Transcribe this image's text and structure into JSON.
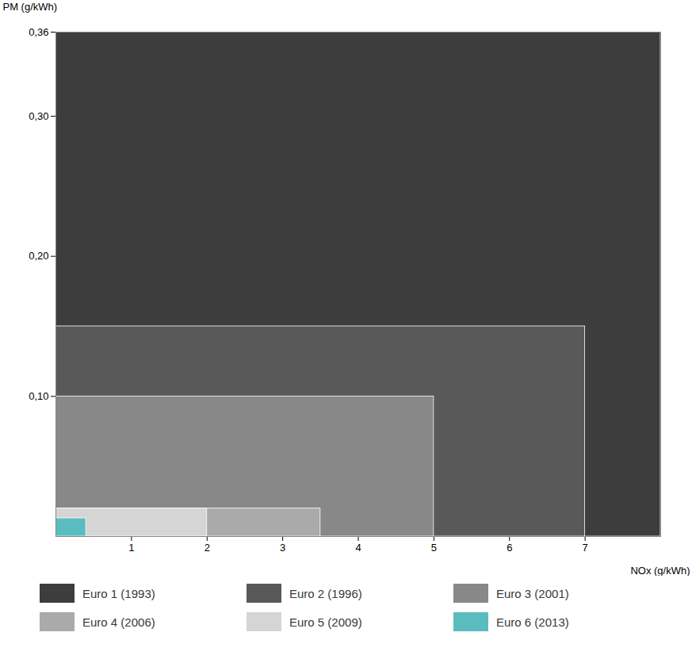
{
  "chart_data": {
    "type": "rect",
    "series": [
      {
        "name": "Euro 1 (1993)",
        "color": "#3d3d3d",
        "x": 8.0,
        "y": 0.36
      },
      {
        "name": "Euro 2 (1996)",
        "color": "#595959",
        "x": 7.0,
        "y": 0.15
      },
      {
        "name": "Euro 3 (2001)",
        "color": "#888888",
        "x": 5.0,
        "y": 0.1
      },
      {
        "name": "Euro 4 (2006)",
        "color": "#aaaaaa",
        "x": 3.5,
        "y": 0.02
      },
      {
        "name": "Euro 5 (2009)",
        "color": "#d5d5d5",
        "x": 2.0,
        "y": 0.02
      },
      {
        "name": "Euro 6 (2013)",
        "color": "#5bbcbf",
        "x": 0.4,
        "y": 0.013
      }
    ],
    "x_label": "NOx (g/kWh)",
    "y_label": "PM (g/kWh)",
    "xlim": [
      0,
      8.0
    ],
    "ylim": [
      0,
      0.36
    ],
    "xticks": [
      1,
      2,
      3,
      4,
      5,
      6,
      7
    ],
    "yticks": [
      {
        "value": 0.1,
        "label": "0,10"
      },
      {
        "value": 0.2,
        "label": "0,20"
      },
      {
        "value": 0.3,
        "label": "0,30"
      },
      {
        "value": 0.36,
        "label": "0,36"
      }
    ],
    "grid": false,
    "legend": "bottom"
  }
}
